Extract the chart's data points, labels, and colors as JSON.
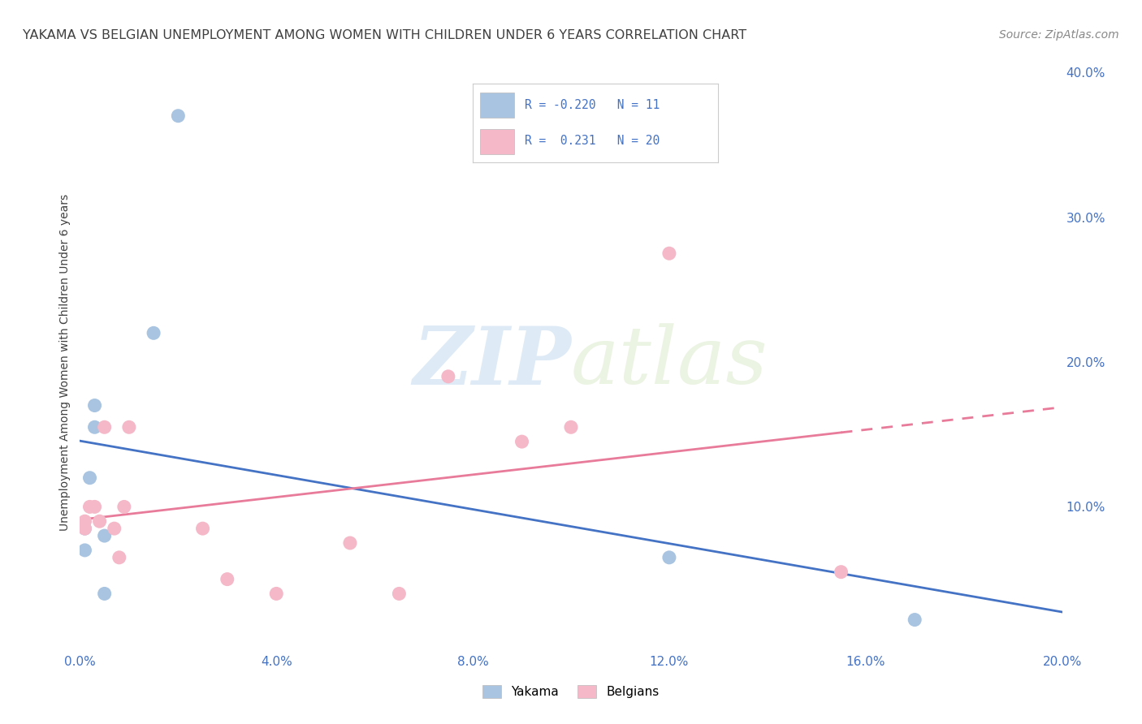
{
  "title": "YAKAMA VS BELGIAN UNEMPLOYMENT AMONG WOMEN WITH CHILDREN UNDER 6 YEARS CORRELATION CHART",
  "source": "Source: ZipAtlas.com",
  "ylabel": "Unemployment Among Women with Children Under 6 years",
  "xlim": [
    0.0,
    0.2
  ],
  "ylim": [
    0.0,
    0.4
  ],
  "xticks": [
    0.0,
    0.04,
    0.08,
    0.12,
    0.16,
    0.2
  ],
  "yticks": [
    0.1,
    0.2,
    0.3,
    0.4
  ],
  "yakama_x": [
    0.001,
    0.001,
    0.002,
    0.003,
    0.003,
    0.005,
    0.005,
    0.015,
    0.02,
    0.12,
    0.17
  ],
  "yakama_y": [
    0.07,
    0.085,
    0.12,
    0.155,
    0.17,
    0.04,
    0.08,
    0.22,
    0.37,
    0.065,
    0.022
  ],
  "belgians_x": [
    0.001,
    0.001,
    0.002,
    0.003,
    0.004,
    0.005,
    0.007,
    0.008,
    0.009,
    0.01,
    0.025,
    0.03,
    0.04,
    0.055,
    0.065,
    0.075,
    0.09,
    0.1,
    0.12,
    0.155
  ],
  "belgians_y": [
    0.085,
    0.09,
    0.1,
    0.1,
    0.09,
    0.155,
    0.085,
    0.065,
    0.1,
    0.155,
    0.085,
    0.05,
    0.04,
    0.075,
    0.04,
    0.19,
    0.145,
    0.155,
    0.275,
    0.055
  ],
  "yakama_color": "#a8c4e0",
  "belgians_color": "#f4b8c8",
  "yakama_line_color": "#4472c4",
  "belgians_line_color": "#e87a9a",
  "R_yakama": -0.22,
  "N_yakama": 11,
  "R_belgians": 0.231,
  "N_belgians": 20,
  "watermark_zip": "ZIP",
  "watermark_atlas": "atlas",
  "background_color": "#ffffff",
  "grid_color": "#d8d8d8",
  "tick_color": "#4472c4",
  "title_color": "#404040",
  "ylabel_color": "#404040"
}
